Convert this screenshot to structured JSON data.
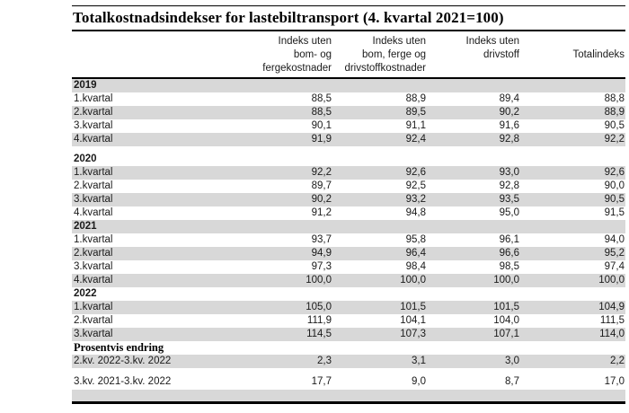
{
  "title": "Totalkostnadsindekser for lastebiltransport (4. kvartal 2021=100)",
  "header": {
    "col_labels": [
      "Indeks uten\nbom- og\nfergekostnader",
      "Indeks uten\nbom, ferge og\ndrivstoffkostnader",
      "Indeks uten\ndrivstoff",
      "Totalindeks"
    ]
  },
  "table": {
    "rows": [
      {
        "type": "year",
        "label": "2019"
      },
      {
        "type": "data",
        "label": "1.kvartal",
        "values": [
          "88,5",
          "88,9",
          "89,4",
          "88,8"
        ]
      },
      {
        "type": "data",
        "label": "2.kvartal",
        "values": [
          "88,5",
          "89,5",
          "90,2",
          "88,9"
        ]
      },
      {
        "type": "data",
        "label": "3.kvartal",
        "values": [
          "90,1",
          "91,1",
          "91,6",
          "90,5"
        ]
      },
      {
        "type": "data",
        "label": "4.kvartal",
        "values": [
          "91,9",
          "92,4",
          "92,8",
          "92,2"
        ]
      },
      {
        "type": "spacer"
      },
      {
        "type": "year",
        "label": "2020"
      },
      {
        "type": "data",
        "label": "1.kvartal",
        "values": [
          "92,2",
          "92,6",
          "93,0",
          "92,6"
        ]
      },
      {
        "type": "data",
        "label": "2.kvartal",
        "values": [
          "89,7",
          "92,5",
          "92,8",
          "90,0"
        ]
      },
      {
        "type": "data",
        "label": "3.kvartal",
        "values": [
          "90,2",
          "93,2",
          "93,5",
          "90,5"
        ]
      },
      {
        "type": "data",
        "label": "4.kvartal",
        "values": [
          "91,2",
          "94,8",
          "95,0",
          "91,5"
        ]
      },
      {
        "type": "year",
        "label": "2021"
      },
      {
        "type": "data",
        "label": "1.kvartal",
        "values": [
          "93,7",
          "95,8",
          "96,1",
          "94,0"
        ]
      },
      {
        "type": "data",
        "label": "2.kvartal",
        "values": [
          "94,9",
          "96,4",
          "96,6",
          "95,2"
        ]
      },
      {
        "type": "data",
        "label": "3.kvartal",
        "values": [
          "97,3",
          "98,4",
          "98,5",
          "97,4"
        ]
      },
      {
        "type": "data",
        "label": "4.kvartal",
        "values": [
          "100,0",
          "100,0",
          "100,0",
          "100,0"
        ]
      },
      {
        "type": "year",
        "label": "2022"
      },
      {
        "type": "data",
        "label": "1.kvartal",
        "values": [
          "105,0",
          "101,5",
          "101,5",
          "104,9"
        ]
      },
      {
        "type": "data",
        "label": "2.kvartal",
        "values": [
          "111,9",
          "104,1",
          "104,0",
          "111,5"
        ]
      },
      {
        "type": "data",
        "label": "3.kvartal",
        "values": [
          "114,5",
          "107,3",
          "107,1",
          "114,0"
        ]
      },
      {
        "type": "section",
        "label": "Prosentvis endring"
      },
      {
        "type": "data",
        "label": "2.kv. 2022-3.kv. 2022",
        "values": [
          "2,3",
          "3,1",
          "3,0",
          "2,2"
        ]
      },
      {
        "type": "smallspacer"
      },
      {
        "type": "data",
        "label": "3.kv. 2021-3.kv. 2022",
        "values": [
          "17,7",
          "9,0",
          "8,7",
          "17,0"
        ],
        "tall": true
      },
      {
        "type": "empty"
      }
    ]
  }
}
